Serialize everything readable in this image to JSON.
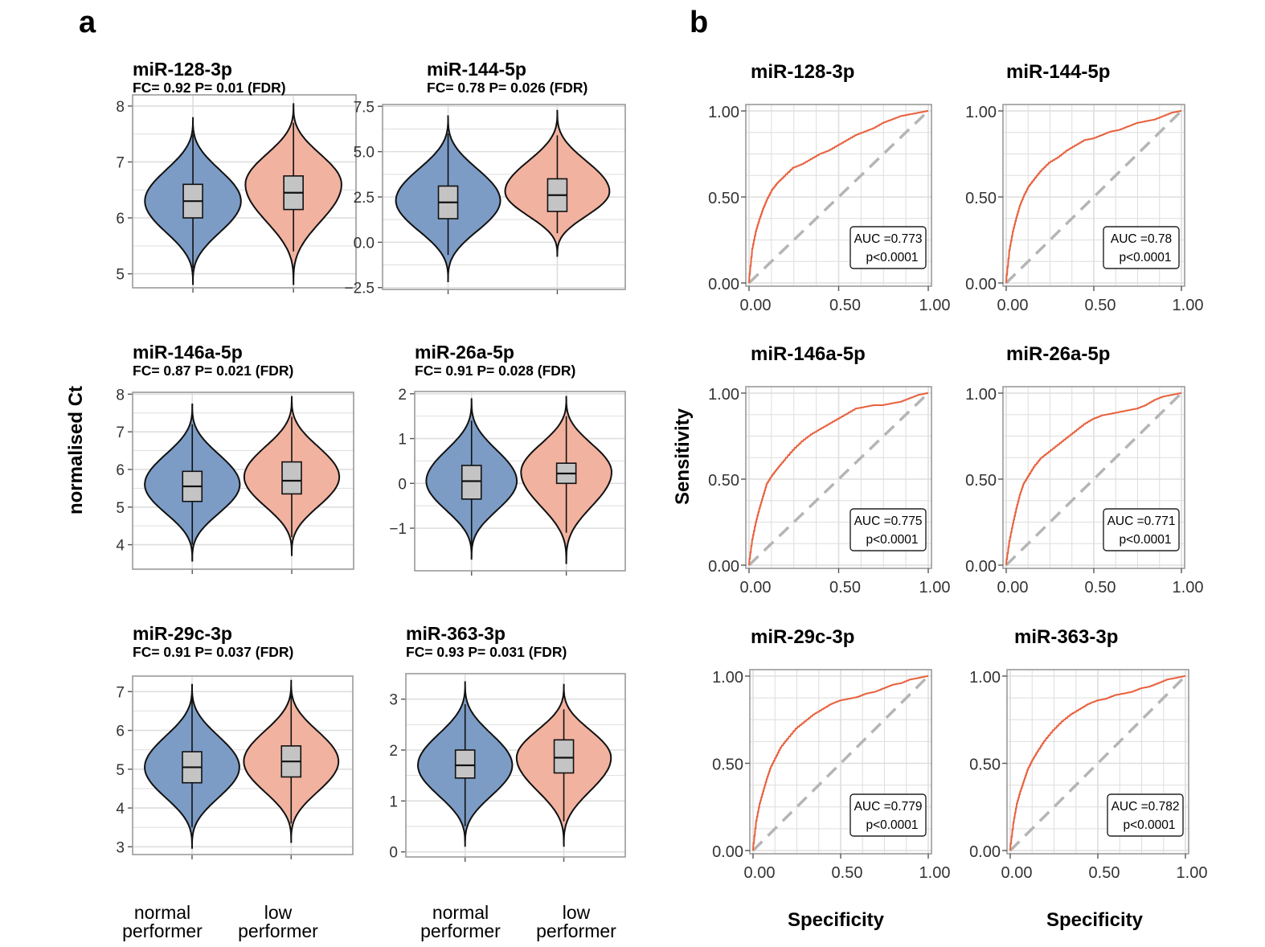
{
  "panel_labels": {
    "a": "a",
    "b": "b"
  },
  "violin_ylabel": "normalised Ct",
  "group_labels": [
    {
      "line1": "normal",
      "line2": "performer"
    },
    {
      "line1": "low",
      "line2": "performer"
    }
  ],
  "roc_ylabel": "Sensitivity",
  "roc_xlabel": "Specificity",
  "colors": {
    "normal_fill": "#7c9cc6",
    "low_fill": "#f2b2a0",
    "box_fill": "#c4c4c4",
    "roc_line": "#e8603d",
    "diagonal": "#b5b5b5",
    "grid": "#dedede",
    "frame": "#9a9a9a"
  },
  "chart_data": [
    {
      "type": "violin",
      "title": "miR-128-3p",
      "subtitle": "FC= 0.92 P= 0.01 (FDR)",
      "ylim": [
        4.75,
        8.2
      ],
      "yticks": [
        "5",
        "6",
        "7",
        "8"
      ],
      "ytick_values": [
        5,
        6,
        7,
        8
      ],
      "groups": [
        {
          "name": "normal performer",
          "min": 4.8,
          "q1": 6.0,
          "median": 6.3,
          "q3": 6.6,
          "max": 7.8,
          "whisker_low": 5.1,
          "whisker_high": 7.5,
          "mode": 6.3
        },
        {
          "name": "low performer",
          "min": 4.8,
          "q1": 6.15,
          "median": 6.45,
          "q3": 6.75,
          "max": 8.05,
          "whisker_low": 5.4,
          "whisker_high": 7.7,
          "mode": 6.6
        }
      ]
    },
    {
      "type": "violin",
      "title": "miR-144-5p",
      "subtitle": "FC= 0.78 P= 0.026 (FDR)",
      "ylim": [
        -2.6,
        7.6
      ],
      "yticks": [
        "7.5",
        "5.0",
        "2.5",
        "0.0",
        "−2.5"
      ],
      "ytick_values": [
        7.5,
        5,
        2.5,
        0,
        -2.5
      ],
      "groups": [
        {
          "name": "normal performer",
          "min": -2.2,
          "q1": 1.3,
          "median": 2.2,
          "q3": 3.1,
          "max": 7.0,
          "whisker_low": -0.7,
          "whisker_high": 6.0,
          "mode": 2.3
        },
        {
          "name": "low performer",
          "min": -0.8,
          "q1": 1.7,
          "median": 2.6,
          "q3": 3.5,
          "max": 7.3,
          "whisker_low": 0.5,
          "whisker_high": 5.9,
          "mode": 2.8
        }
      ]
    },
    {
      "type": "violin",
      "title": "miR-146a-5p",
      "subtitle": "FC= 0.87 P= 0.021 (FDR)",
      "ylim": [
        3.35,
        8.05
      ],
      "yticks": [
        "8",
        "7",
        "6",
        "5",
        "4"
      ],
      "ytick_values": [
        8,
        7,
        6,
        5,
        4
      ],
      "groups": [
        {
          "name": "normal performer",
          "min": 3.55,
          "q1": 5.15,
          "median": 5.55,
          "q3": 5.95,
          "max": 7.75,
          "whisker_low": 4.0,
          "whisker_high": 7.2,
          "mode": 5.6
        },
        {
          "name": "low performer",
          "min": 3.7,
          "q1": 5.35,
          "median": 5.7,
          "q3": 6.2,
          "max": 7.95,
          "whisker_low": 4.2,
          "whisker_high": 7.4,
          "mode": 5.8
        }
      ]
    },
    {
      "type": "violin",
      "title": "miR-26a-5p",
      "subtitle": "FC= 0.91 P= 0.028 (FDR)",
      "ylim": [
        -1.95,
        2.05
      ],
      "yticks": [
        "2",
        "1",
        "0",
        "−1"
      ],
      "ytick_values": [
        2,
        1,
        0,
        -1
      ],
      "groups": [
        {
          "name": "normal performer",
          "min": -1.7,
          "q1": -0.35,
          "median": 0.05,
          "q3": 0.4,
          "max": 1.9,
          "whisker_low": -1.4,
          "whisker_high": 1.4,
          "mode": 0.05
        },
        {
          "name": "low performer",
          "min": -1.8,
          "q1": 0.0,
          "median": 0.22,
          "q3": 0.45,
          "max": 1.95,
          "whisker_low": -1.1,
          "whisker_high": 1.5,
          "mode": 0.25
        }
      ]
    },
    {
      "type": "violin",
      "title": "miR-29c-3p",
      "subtitle": "FC= 0.91 P= 0.037 (FDR)",
      "ylim": [
        2.8,
        7.4
      ],
      "yticks": [
        "7",
        "6",
        "5",
        "4",
        "3"
      ],
      "ytick_values": [
        7,
        6,
        5,
        4,
        3
      ],
      "groups": [
        {
          "name": "normal performer",
          "min": 2.95,
          "q1": 4.65,
          "median": 5.05,
          "q3": 5.45,
          "max": 7.2,
          "whisker_low": 3.5,
          "whisker_high": 6.8,
          "mode": 5.05
        },
        {
          "name": "low performer",
          "min": 3.1,
          "q1": 4.8,
          "median": 5.2,
          "q3": 5.6,
          "max": 7.3,
          "whisker_low": 3.6,
          "whisker_high": 6.9,
          "mode": 5.2
        }
      ]
    },
    {
      "type": "violin",
      "title": "miR-363-3p",
      "subtitle": "FC= 0.93 P= 0.031 (FDR)",
      "ylim": [
        -0.1,
        3.5
      ],
      "yticks": [
        "3",
        "2",
        "1",
        "0"
      ],
      "ytick_values": [
        3,
        2,
        1,
        0
      ],
      "groups": [
        {
          "name": "normal performer",
          "min": 0.1,
          "q1": 1.45,
          "median": 1.7,
          "q3": 2.0,
          "max": 3.35,
          "whisker_low": 0.5,
          "whisker_high": 2.9,
          "mode": 1.7
        },
        {
          "name": "low performer",
          "min": 0.1,
          "q1": 1.55,
          "median": 1.85,
          "q3": 2.2,
          "max": 3.3,
          "whisker_low": 0.6,
          "whisker_high": 2.8,
          "mode": 1.85
        }
      ]
    },
    {
      "type": "roc",
      "title": "miR-128-3p",
      "auc_label": "AUC =0.773",
      "p_label": "p<0.0001",
      "xticks": [
        "0.00",
        "0.50",
        "1.00"
      ],
      "yticks": [
        "1.00",
        "0.50",
        "0.00"
      ],
      "x": [
        0,
        0.02,
        0.04,
        0.06,
        0.08,
        0.1,
        0.13,
        0.16,
        0.2,
        0.25,
        0.3,
        0.35,
        0.4,
        0.45,
        0.5,
        0.55,
        0.6,
        0.65,
        0.7,
        0.75,
        0.8,
        0.85,
        0.9,
        0.95,
        1.0
      ],
      "y": [
        0,
        0.2,
        0.3,
        0.37,
        0.43,
        0.48,
        0.54,
        0.58,
        0.62,
        0.67,
        0.69,
        0.72,
        0.75,
        0.77,
        0.8,
        0.83,
        0.86,
        0.88,
        0.9,
        0.93,
        0.95,
        0.97,
        0.98,
        0.99,
        1.0
      ]
    },
    {
      "type": "roc",
      "title": "miR-144-5p",
      "auc_label": "AUC =0.78",
      "p_label": "p<0.0001",
      "xticks": [
        "0.00",
        "0.50",
        "1.00"
      ],
      "yticks": [
        "1.00",
        "0.50",
        "0.00"
      ],
      "x": [
        0,
        0.02,
        0.04,
        0.06,
        0.08,
        0.1,
        0.13,
        0.16,
        0.2,
        0.25,
        0.3,
        0.35,
        0.4,
        0.45,
        0.5,
        0.55,
        0.6,
        0.65,
        0.7,
        0.75,
        0.8,
        0.85,
        0.9,
        0.95,
        1.0
      ],
      "y": [
        0,
        0.19,
        0.3,
        0.38,
        0.45,
        0.5,
        0.56,
        0.6,
        0.65,
        0.7,
        0.73,
        0.77,
        0.8,
        0.83,
        0.84,
        0.86,
        0.88,
        0.89,
        0.91,
        0.93,
        0.94,
        0.95,
        0.97,
        0.99,
        1.0
      ]
    },
    {
      "type": "roc",
      "title": "miR-146a-5p",
      "auc_label": "AUC =0.775",
      "p_label": "p<0.0001",
      "xticks": [
        "0.00",
        "0.50",
        "1.00"
      ],
      "yticks": [
        "1.00",
        "0.50",
        "0.00"
      ],
      "x": [
        0,
        0.02,
        0.04,
        0.06,
        0.08,
        0.1,
        0.13,
        0.16,
        0.2,
        0.25,
        0.3,
        0.35,
        0.4,
        0.45,
        0.5,
        0.55,
        0.6,
        0.65,
        0.7,
        0.75,
        0.8,
        0.85,
        0.9,
        0.95,
        1.0
      ],
      "y": [
        0,
        0.15,
        0.25,
        0.33,
        0.4,
        0.47,
        0.52,
        0.56,
        0.61,
        0.67,
        0.72,
        0.76,
        0.79,
        0.82,
        0.85,
        0.88,
        0.91,
        0.92,
        0.93,
        0.93,
        0.94,
        0.95,
        0.97,
        0.99,
        1.0
      ]
    },
    {
      "type": "roc",
      "title": "miR-26a-5p",
      "auc_label": "AUC =0.771",
      "p_label": "p<0.0001",
      "xticks": [
        "0.00",
        "0.50",
        "1.00"
      ],
      "yticks": [
        "1.00",
        "0.50",
        "0.00"
      ],
      "x": [
        0,
        0.02,
        0.04,
        0.06,
        0.08,
        0.1,
        0.13,
        0.16,
        0.2,
        0.25,
        0.3,
        0.35,
        0.4,
        0.45,
        0.5,
        0.55,
        0.6,
        0.65,
        0.7,
        0.75,
        0.8,
        0.85,
        0.9,
        0.95,
        1.0
      ],
      "y": [
        0,
        0.14,
        0.24,
        0.33,
        0.41,
        0.47,
        0.52,
        0.57,
        0.62,
        0.66,
        0.7,
        0.74,
        0.78,
        0.82,
        0.85,
        0.87,
        0.88,
        0.89,
        0.9,
        0.91,
        0.93,
        0.96,
        0.98,
        0.99,
        1.0
      ]
    },
    {
      "type": "roc",
      "title": "miR-29c-3p",
      "auc_label": "AUC =0.779",
      "p_label": "p<0.0001",
      "xticks": [
        "0.00",
        "0.50",
        "1.00"
      ],
      "yticks": [
        "1.00",
        "0.50",
        "0.00"
      ],
      "x": [
        0,
        0.02,
        0.04,
        0.06,
        0.08,
        0.1,
        0.13,
        0.16,
        0.2,
        0.25,
        0.3,
        0.35,
        0.4,
        0.45,
        0.5,
        0.55,
        0.6,
        0.65,
        0.7,
        0.75,
        0.8,
        0.85,
        0.9,
        0.95,
        1.0
      ],
      "y": [
        0,
        0.17,
        0.27,
        0.34,
        0.41,
        0.47,
        0.53,
        0.59,
        0.64,
        0.7,
        0.74,
        0.78,
        0.81,
        0.84,
        0.86,
        0.87,
        0.88,
        0.9,
        0.91,
        0.93,
        0.95,
        0.96,
        0.98,
        0.99,
        1.0
      ]
    },
    {
      "type": "roc",
      "title": "miR-363-3p",
      "auc_label": "AUC =0.782",
      "p_label": "p<0.0001",
      "xticks": [
        "0.00",
        "0.50",
        "1.00"
      ],
      "yticks": [
        "1.00",
        "0.50",
        "0.00"
      ],
      "x": [
        0,
        0.02,
        0.04,
        0.06,
        0.08,
        0.1,
        0.13,
        0.16,
        0.2,
        0.25,
        0.3,
        0.35,
        0.4,
        0.45,
        0.5,
        0.55,
        0.6,
        0.65,
        0.7,
        0.75,
        0.8,
        0.85,
        0.9,
        0.95,
        1.0
      ],
      "y": [
        0,
        0.16,
        0.27,
        0.34,
        0.4,
        0.46,
        0.52,
        0.57,
        0.63,
        0.69,
        0.74,
        0.78,
        0.81,
        0.84,
        0.86,
        0.87,
        0.89,
        0.9,
        0.91,
        0.93,
        0.94,
        0.96,
        0.98,
        0.99,
        1.0
      ]
    }
  ]
}
